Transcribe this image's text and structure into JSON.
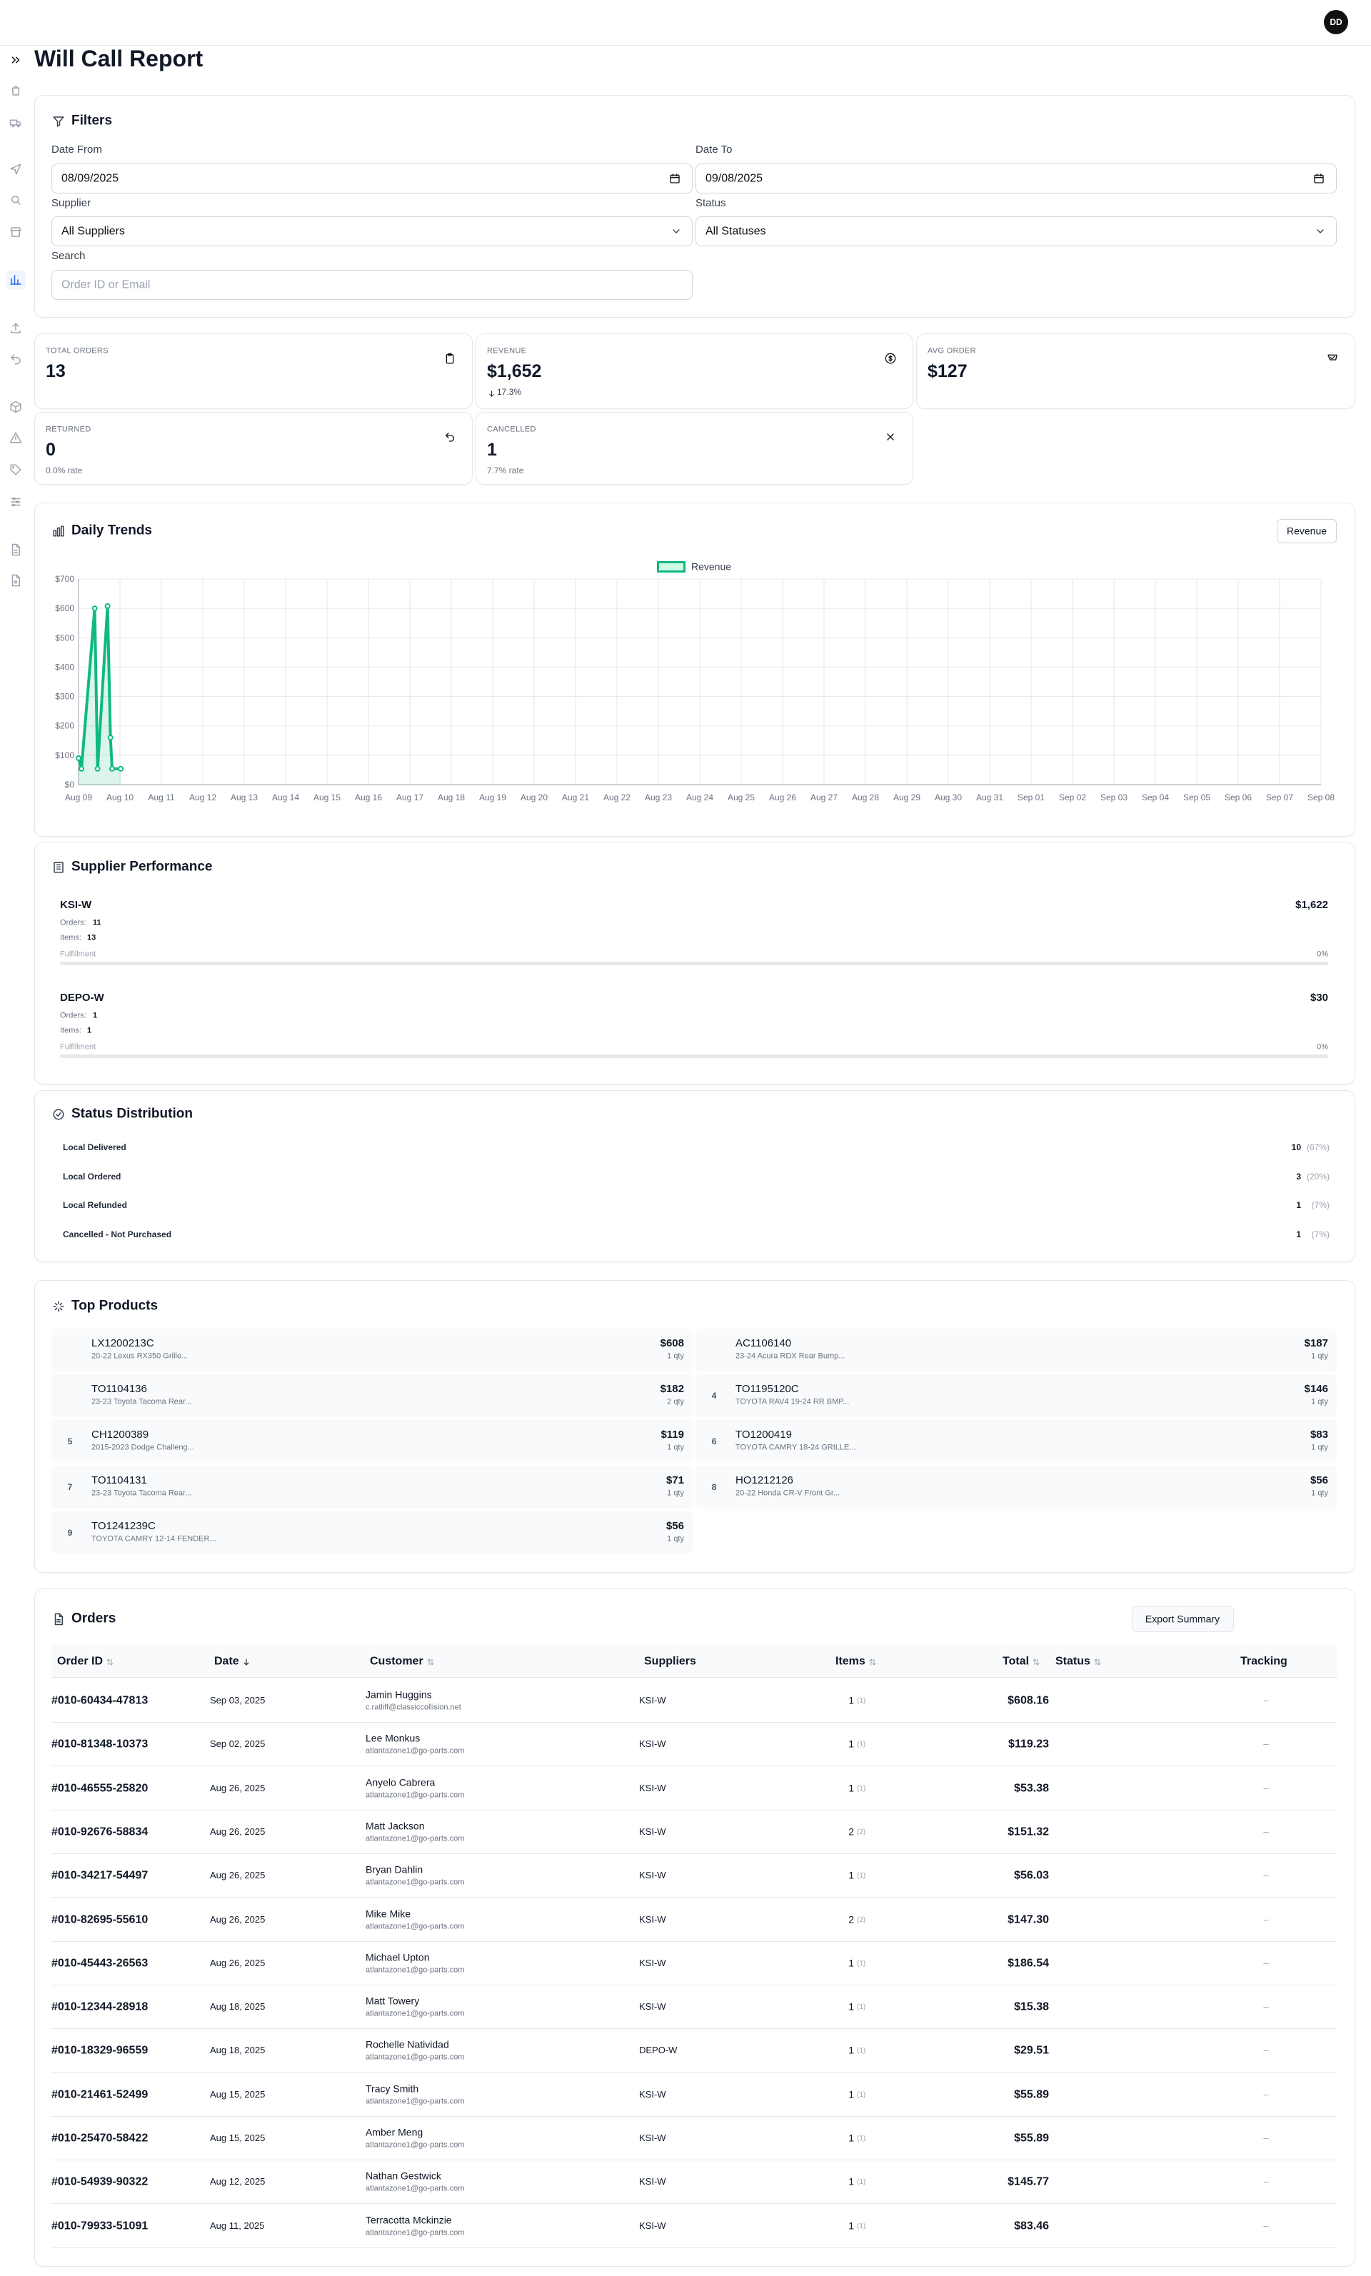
{
  "header": {
    "avatar": "DD",
    "title": "Will Call Report"
  },
  "filters": {
    "title": "Filters",
    "date_from": {
      "label": "Date From",
      "value": "08/09/2025"
    },
    "date_to": {
      "label": "Date To",
      "value": "09/08/2025"
    },
    "supplier": {
      "label": "Supplier",
      "value": "All Suppliers"
    },
    "status": {
      "label": "Status",
      "value": "All Statuses"
    },
    "search": {
      "label": "Search",
      "placeholder": "Order ID or Email"
    }
  },
  "stats": [
    {
      "label": "TOTAL ORDERS",
      "value": "13"
    },
    {
      "label": "REVENUE",
      "value": "$1,652",
      "change": "17.3%"
    },
    {
      "label": "AVG ORDER",
      "value": "$127"
    },
    {
      "label": "RETURNED",
      "value": "0",
      "note": "0.0% rate"
    },
    {
      "label": "CANCELLED",
      "value": "1",
      "note": "7.7% rate"
    }
  ],
  "chart_data": {
    "type": "line",
    "title": "Daily Trends",
    "selector": "Revenue",
    "x": [
      0,
      0.07,
      0.39,
      0.46,
      0.7,
      0.77,
      0.81,
      1.02
    ],
    "series": [
      {
        "name": "Revenue",
        "color": "#10b981",
        "values": [
          90,
          54,
          600,
          54,
          608,
          160,
          54,
          54
        ]
      }
    ],
    "xlim": [
      0,
      30
    ],
    "xticks": [
      {
        "value": 0,
        "label": "Aug 09"
      },
      {
        "value": 1,
        "label": "Aug 10"
      },
      {
        "value": 2,
        "label": "Aug 11"
      },
      {
        "value": 3,
        "label": "Aug 12"
      },
      {
        "value": 4,
        "label": "Aug 13"
      },
      {
        "value": 5,
        "label": "Aug 14"
      },
      {
        "value": 6,
        "label": "Aug 15"
      },
      {
        "value": 7,
        "label": "Aug 16"
      },
      {
        "value": 8,
        "label": "Aug 17"
      },
      {
        "value": 9,
        "label": "Aug 18"
      },
      {
        "value": 10,
        "label": "Aug 19"
      },
      {
        "value": 11,
        "label": "Aug 20"
      },
      {
        "value": 12,
        "label": "Aug 21"
      },
      {
        "value": 13,
        "label": "Aug 22"
      },
      {
        "value": 14,
        "label": "Aug 23"
      },
      {
        "value": 15,
        "label": "Aug 24"
      },
      {
        "value": 16,
        "label": "Aug 25"
      },
      {
        "value": 17,
        "label": "Aug 26"
      },
      {
        "value": 18,
        "label": "Aug 27"
      },
      {
        "value": 19,
        "label": "Aug 28"
      },
      {
        "value": 20,
        "label": "Aug 29"
      },
      {
        "value": 21,
        "label": "Aug 30"
      },
      {
        "value": 22,
        "label": "Aug 31"
      },
      {
        "value": 23,
        "label": "Sep 01"
      },
      {
        "value": 24,
        "label": "Sep 02"
      },
      {
        "value": 25,
        "label": "Sep 03"
      },
      {
        "value": 26,
        "label": "Sep 04"
      },
      {
        "value": 27,
        "label": "Sep 05"
      },
      {
        "value": 28,
        "label": "Sep 06"
      },
      {
        "value": 29,
        "label": "Sep 07"
      },
      {
        "value": 30,
        "label": "Sep 08"
      }
    ],
    "ylim": [
      0,
      700
    ],
    "yticks": [
      {
        "value": 0,
        "label": "$0"
      },
      {
        "value": 100,
        "label": "$100"
      },
      {
        "value": 200,
        "label": "$200"
      },
      {
        "value": 300,
        "label": "$300"
      },
      {
        "value": 400,
        "label": "$400"
      },
      {
        "value": 500,
        "label": "$500"
      },
      {
        "value": 600,
        "label": "$600"
      },
      {
        "value": 700,
        "label": "$700"
      }
    ],
    "grid": true,
    "legend": "top"
  },
  "supplier_performance": {
    "title": "Supplier Performance",
    "orders_label": "Orders:",
    "items_label": "Items:",
    "fulfillment_label": "Fulfillment",
    "suppliers": [
      {
        "name": "KSI-W",
        "revenue": "$1,622",
        "orders": "11",
        "items": "13",
        "fulfillment": "0%"
      },
      {
        "name": "DEPO-W",
        "revenue": "$30",
        "orders": "1",
        "items": "1",
        "fulfillment": "0%"
      }
    ]
  },
  "status_distribution": {
    "title": "Status Distribution",
    "rows": [
      {
        "label": "Local Delivered",
        "count": "10",
        "percent": "(67%)"
      },
      {
        "label": "Local Ordered",
        "count": "3",
        "percent": "(20%)"
      },
      {
        "label": "Local Refunded",
        "count": "1",
        "percent": "(7%)"
      },
      {
        "label": "Cancelled - Not Purchased",
        "count": "1",
        "percent": "(7%)"
      }
    ]
  },
  "top_products": {
    "title": "Top Products",
    "items": [
      {
        "sku": "LX1200213C",
        "description": "20-22 Lexus RX350 Grille...",
        "revenue": "$608",
        "qty": "1 qty"
      },
      {
        "sku": "AC1106140",
        "description": "23-24 Acura RDX Rear Bump...",
        "revenue": "$187",
        "qty": "1 qty"
      },
      {
        "sku": "TO1104136",
        "description": "23-23 Toyota Tacoma Rear...",
        "revenue": "$182",
        "qty": "2 qty"
      },
      {
        "rank": "4",
        "sku": "TO1195120C",
        "description": "TOYOTA RAV4 19-24 RR BMP...",
        "revenue": "$146",
        "qty": "1 qty"
      },
      {
        "rank": "5",
        "sku": "CH1200389",
        "description": "2015-2023 Dodge Challeng...",
        "revenue": "$119",
        "qty": "1 qty"
      },
      {
        "rank": "6",
        "sku": "TO1200419",
        "description": "TOYOTA CAMRY 18-24 GRILLE...",
        "revenue": "$83",
        "qty": "1 qty"
      },
      {
        "rank": "7",
        "sku": "TO1104131",
        "description": "23-23 Toyota Tacoma Rear...",
        "revenue": "$71",
        "qty": "1 qty"
      },
      {
        "rank": "8",
        "sku": "HO1212126",
        "description": "20-22 Honda CR-V Front Gr...",
        "revenue": "$56",
        "qty": "1 qty"
      },
      {
        "rank": "9",
        "sku": "TO1241239C",
        "description": "TOYOTA CAMRY 12-14 FENDER...",
        "revenue": "$56",
        "qty": "1 qty"
      }
    ]
  },
  "orders": {
    "title": "Orders",
    "export": "Export Summary",
    "columns": [
      "Order ID",
      "Date",
      "Customer",
      "Suppliers",
      "Items",
      "Total",
      "Status",
      "Tracking"
    ],
    "rows": [
      {
        "id": "#010-60434-47813",
        "date": "Sep 03, 2025",
        "customer": "Jamin Huggins",
        "email": "c.ratliff@classiccollision.net",
        "supplier": "KSI-W",
        "items": "1",
        "items_sub": "(1)",
        "total": "$608.16",
        "tracking": "–"
      },
      {
        "id": "#010-81348-10373",
        "date": "Sep 02, 2025",
        "customer": "Lee Monkus",
        "email": "atlantazone1@go-parts.com",
        "supplier": "KSI-W",
        "items": "1",
        "items_sub": "(1)",
        "total": "$119.23",
        "tracking": "–"
      },
      {
        "id": "#010-46555-25820",
        "date": "Aug 26, 2025",
        "customer": "Anyelo Cabrera",
        "email": "atlantazone1@go-parts.com",
        "supplier": "KSI-W",
        "items": "1",
        "items_sub": "(1)",
        "total": "$53.38",
        "tracking": "–"
      },
      {
        "id": "#010-92676-58834",
        "date": "Aug 26, 2025",
        "customer": "Matt Jackson",
        "email": "atlantazone1@go-parts.com",
        "supplier": "KSI-W",
        "items": "2",
        "items_sub": "(2)",
        "total": "$151.32",
        "tracking": "–"
      },
      {
        "id": "#010-34217-54497",
        "date": "Aug 26, 2025",
        "customer": "Bryan Dahlin",
        "email": "atlantazone1@go-parts.com",
        "supplier": "KSI-W",
        "items": "1",
        "items_sub": "(1)",
        "total": "$56.03",
        "tracking": "–"
      },
      {
        "id": "#010-82695-55610",
        "date": "Aug 26, 2025",
        "customer": "Mike Mike",
        "email": "atlantazone1@go-parts.com",
        "supplier": "KSI-W",
        "items": "2",
        "items_sub": "(2)",
        "total": "$147.30",
        "tracking": "–"
      },
      {
        "id": "#010-45443-26563",
        "date": "Aug 26, 2025",
        "customer": "Michael Upton",
        "email": "atlantazone1@go-parts.com",
        "supplier": "KSI-W",
        "items": "1",
        "items_sub": "(1)",
        "total": "$186.54",
        "tracking": "–"
      },
      {
        "id": "#010-12344-28918",
        "date": "Aug 18, 2025",
        "customer": "Matt Towery",
        "email": "atlantazone1@go-parts.com",
        "supplier": "KSI-W",
        "items": "1",
        "items_sub": "(1)",
        "total": "$15.38",
        "tracking": "–"
      },
      {
        "id": "#010-18329-96559",
        "date": "Aug 18, 2025",
        "customer": "Rochelle Natividad",
        "email": "atlantazone1@go-parts.com",
        "supplier": "DEPO-W",
        "items": "1",
        "items_sub": "(1)",
        "total": "$29.51",
        "tracking": "–"
      },
      {
        "id": "#010-21461-52499",
        "date": "Aug 15, 2025",
        "customer": "Tracy Smith",
        "email": "atlantazone1@go-parts.com",
        "supplier": "KSI-W",
        "items": "1",
        "items_sub": "(1)",
        "total": "$55.89",
        "tracking": "–"
      },
      {
        "id": "#010-25470-58422",
        "date": "Aug 15, 2025",
        "customer": "Amber Meng",
        "email": "atlantazone1@go-parts.com",
        "supplier": "KSI-W",
        "items": "1",
        "items_sub": "(1)",
        "total": "$55.89",
        "tracking": "–"
      },
      {
        "id": "#010-54939-90322",
        "date": "Aug 12, 2025",
        "customer": "Nathan Gestwick",
        "email": "atlantazone1@go-parts.com",
        "supplier": "KSI-W",
        "items": "1",
        "items_sub": "(1)",
        "total": "$145.77",
        "tracking": "–"
      },
      {
        "id": "#010-79933-51091",
        "date": "Aug 11, 2025",
        "customer": "Terracotta Mckinzie",
        "email": "atlantazone1@go-parts.com",
        "supplier": "KSI-W",
        "items": "1",
        "items_sub": "(1)",
        "total": "$83.46",
        "tracking": "–"
      }
    ]
  }
}
